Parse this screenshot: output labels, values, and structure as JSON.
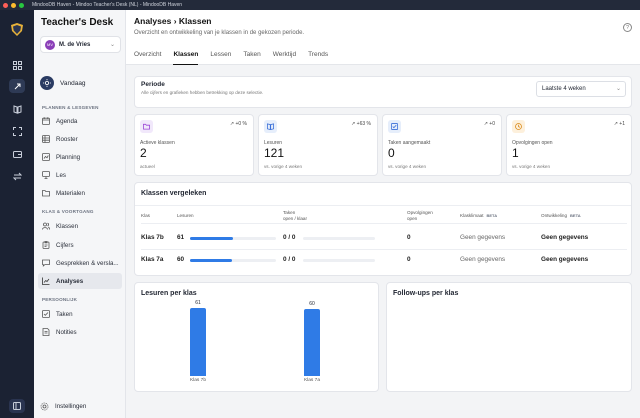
{
  "window": {
    "title": "MindooDB Haven - Mindoo Teacher's Desk (NL) - MindooDB Haven",
    "traffic_lights": [
      "#ff5f57",
      "#febc2e",
      "#28c840"
    ]
  },
  "sidebar": {
    "brand": "Teacher's Desk",
    "user": {
      "initials": "MV",
      "name": "M. de Vries"
    },
    "today_label": "Vandaag",
    "sections": {
      "plan": "PLANNEN & LESGEVEN",
      "klas": "KLAS & VOORTGANG",
      "persoonlijk": "PERSOONLIJK"
    },
    "plan_items": [
      {
        "label": "Agenda",
        "icon": "calendar-icon"
      },
      {
        "label": "Rooster",
        "icon": "grid-icon"
      },
      {
        "label": "Planning",
        "icon": "planning-icon"
      },
      {
        "label": "Les",
        "icon": "lesson-icon"
      },
      {
        "label": "Materialen",
        "icon": "folder-icon"
      }
    ],
    "klas_items": [
      {
        "label": "Klassen",
        "icon": "people-icon"
      },
      {
        "label": "Cijfers",
        "icon": "clipboard-icon"
      },
      {
        "label": "Gesprekken & versla...",
        "icon": "chat-icon"
      },
      {
        "label": "Analyses",
        "icon": "chart-icon",
        "active": true
      }
    ],
    "personal_items": [
      {
        "label": "Taken",
        "icon": "checklist-icon"
      },
      {
        "label": "Notities",
        "icon": "notes-icon"
      }
    ],
    "settings_label": "Instellingen"
  },
  "header": {
    "breadcrumb": "Analyses › Klassen",
    "subtitle": "Overzicht en ontwikkeling van je klassen in de gekozen periode.",
    "help": "?",
    "tabs": [
      "Overzicht",
      "Klassen",
      "Lessen",
      "Taken",
      "Werktijd",
      "Trends"
    ],
    "active_tab": "Klassen"
  },
  "periode": {
    "title": "Periode",
    "subtitle": "Alle cijfers en grafieken hebben betrekking op deze selectie.",
    "selected": "Laatste 4 weken"
  },
  "stats": [
    {
      "label": "Actieve klassen",
      "value": "2",
      "note": "actueel",
      "trend": "↗ +0 %",
      "icon": "folder-icon",
      "bg": "#f1e8fb",
      "fg": "#9b45d6"
    },
    {
      "label": "Lesuren",
      "value": "121",
      "note": "vs. vorige 4 weken",
      "trend": "↗ +63 %",
      "icon": "book-icon",
      "bg": "#e6eefb",
      "fg": "#3a6fd8"
    },
    {
      "label": "Taken aangemaakt",
      "value": "0",
      "note": "vs. vorige 4 weken",
      "trend": "↗ +0",
      "icon": "check-icon",
      "bg": "#e6eefb",
      "fg": "#3a6fd8"
    },
    {
      "label": "Opvolgingen open",
      "value": "1",
      "note": "vs. vorige 4 weken",
      "trend": "↗ +1",
      "icon": "clock-icon",
      "bg": "#fdf0dc",
      "fg": "#d98a1a"
    }
  ],
  "compare": {
    "title": "Klassen vergeleken",
    "headers": {
      "klas": "Klas",
      "lesuren": "Lesuren",
      "taken": "Taken",
      "taken_sub": "open / klaar",
      "opvolgingen": "Opvolgingen",
      "opvolgingen_sub": "open",
      "klasklimaat": "Klasklimaat",
      "ontwikkeling": "Ontwikkeling",
      "beta": "BETA"
    },
    "rows": [
      {
        "klas": "Klas 7b",
        "lesuren": "61",
        "lesuren_ratio": 0.5,
        "taken": "0 / 0",
        "opvolgingen": "0",
        "klimaat": "Geen gegevens",
        "ontwikkeling": "Geen gegevens"
      },
      {
        "klas": "Klas 7a",
        "lesuren": "60",
        "lesuren_ratio": 0.49,
        "taken": "0 / 0",
        "opvolgingen": "0",
        "klimaat": "Geen gegevens",
        "ontwikkeling": "Geen gegevens"
      }
    ],
    "bar_color": "#2f7be6"
  },
  "lesuren_chart": {
    "title": "Lesuren per klas"
  },
  "followups": {
    "title": "Follow-ups per klas"
  },
  "chart_data": {
    "type": "bar",
    "title": "Lesuren per klas",
    "categories": [
      "Klas 7b",
      "Klas 7a"
    ],
    "values": [
      61,
      60
    ],
    "color": "#2f7be6"
  }
}
